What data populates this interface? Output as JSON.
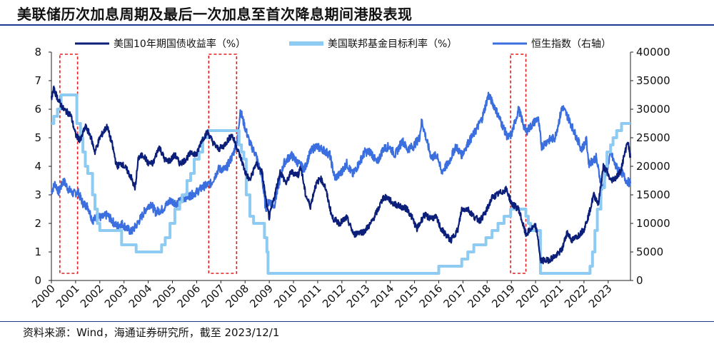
{
  "title": "美联储历次加息周期及最后一次加息至首次降息期间港股表现",
  "source": "资料来源：Wind，海通证券研究所，截至 2023/12/1",
  "chart_data": {
    "type": "line",
    "title": "美联储历次加息周期及最后一次加息至首次降息期间港股表现",
    "x_ticks": [
      "2000",
      "2001",
      "2002",
      "2003",
      "2004",
      "2005",
      "2006",
      "2007",
      "2008",
      "2009",
      "2010",
      "2011",
      "2012",
      "2013",
      "2014",
      "2015",
      "2016",
      "2017",
      "2018",
      "2019",
      "2020",
      "2021",
      "2022",
      "2023"
    ],
    "xlim": [
      2000.0,
      2023.92
    ],
    "y_left": {
      "ylim": [
        0,
        8
      ],
      "ticks": [
        "0",
        "1",
        "2",
        "3",
        "4",
        "5",
        "6",
        "7",
        "8"
      ]
    },
    "y_right": {
      "ylim": [
        0,
        40000
      ],
      "ticks": [
        "0",
        "5000",
        "10000",
        "15000",
        "20000",
        "25000",
        "30000",
        "35000",
        "40000"
      ]
    },
    "legend": {
      "placement": "top",
      "entries": [
        "美国10年期国债收益率（%）",
        "美国联邦基金目标利率（%）",
        "恒生指数（右轴）"
      ]
    },
    "highlight_periods": [
      [
        2000.35,
        2001.08
      ],
      [
        2006.5,
        2007.65
      ],
      [
        2018.97,
        2019.6
      ]
    ],
    "series": [
      {
        "name": "美国10年期国债收益率（%）",
        "axis": "left",
        "color": "#0b1f7a",
        "points": [
          [
            2000.0,
            6.4
          ],
          [
            2000.1,
            6.7
          ],
          [
            2000.3,
            6.3
          ],
          [
            2000.5,
            6.0
          ],
          [
            2000.8,
            5.8
          ],
          [
            2001.0,
            5.1
          ],
          [
            2001.2,
            4.9
          ],
          [
            2001.4,
            5.4
          ],
          [
            2001.6,
            5.1
          ],
          [
            2001.8,
            4.5
          ],
          [
            2002.0,
            5.0
          ],
          [
            2002.3,
            5.4
          ],
          [
            2002.5,
            4.8
          ],
          [
            2002.7,
            4.0
          ],
          [
            2002.9,
            4.1
          ],
          [
            2003.1,
            3.9
          ],
          [
            2003.3,
            3.6
          ],
          [
            2003.45,
            3.2
          ],
          [
            2003.6,
            4.3
          ],
          [
            2003.8,
            4.4
          ],
          [
            2004.0,
            4.1
          ],
          [
            2004.2,
            4.1
          ],
          [
            2004.45,
            4.7
          ],
          [
            2004.7,
            4.2
          ],
          [
            2004.9,
            4.2
          ],
          [
            2005.1,
            4.4
          ],
          [
            2005.3,
            4.1
          ],
          [
            2005.5,
            4.2
          ],
          [
            2005.8,
            4.5
          ],
          [
            2006.0,
            4.4
          ],
          [
            2006.2,
            4.9
          ],
          [
            2006.45,
            5.2
          ],
          [
            2006.7,
            4.8
          ],
          [
            2006.9,
            4.6
          ],
          [
            2007.1,
            4.7
          ],
          [
            2007.45,
            5.1
          ],
          [
            2007.6,
            4.8
          ],
          [
            2007.9,
            4.1
          ],
          [
            2008.0,
            3.8
          ],
          [
            2008.2,
            3.5
          ],
          [
            2008.45,
            4.1
          ],
          [
            2008.7,
            3.8
          ],
          [
            2008.9,
            2.6
          ],
          [
            2009.0,
            2.2
          ],
          [
            2009.2,
            2.9
          ],
          [
            2009.45,
            3.8
          ],
          [
            2009.7,
            3.4
          ],
          [
            2009.9,
            3.8
          ],
          [
            2010.2,
            3.7
          ],
          [
            2010.3,
            4.0
          ],
          [
            2010.5,
            3.0
          ],
          [
            2010.7,
            2.6
          ],
          [
            2010.9,
            3.3
          ],
          [
            2011.1,
            3.6
          ],
          [
            2011.3,
            3.3
          ],
          [
            2011.6,
            2.2
          ],
          [
            2011.9,
            2.0
          ],
          [
            2012.2,
            2.2
          ],
          [
            2012.5,
            1.6
          ],
          [
            2012.7,
            1.7
          ],
          [
            2012.9,
            1.7
          ],
          [
            2013.2,
            2.0
          ],
          [
            2013.5,
            2.5
          ],
          [
            2013.7,
            2.9
          ],
          [
            2013.9,
            2.9
          ],
          [
            2014.1,
            2.7
          ],
          [
            2014.4,
            2.6
          ],
          [
            2014.7,
            2.5
          ],
          [
            2014.9,
            2.2
          ],
          [
            2015.1,
            1.8
          ],
          [
            2015.4,
            2.3
          ],
          [
            2015.6,
            2.2
          ],
          [
            2015.9,
            2.2
          ],
          [
            2016.1,
            1.8
          ],
          [
            2016.5,
            1.4
          ],
          [
            2016.8,
            1.8
          ],
          [
            2016.95,
            2.5
          ],
          [
            2017.2,
            2.5
          ],
          [
            2017.5,
            2.2
          ],
          [
            2017.7,
            2.1
          ],
          [
            2017.95,
            2.4
          ],
          [
            2018.2,
            2.9
          ],
          [
            2018.4,
            3.0
          ],
          [
            2018.8,
            3.2
          ],
          [
            2019.0,
            2.7
          ],
          [
            2019.3,
            2.5
          ],
          [
            2019.6,
            1.6
          ],
          [
            2019.8,
            1.8
          ],
          [
            2020.0,
            1.9
          ],
          [
            2020.1,
            1.5
          ],
          [
            2020.2,
            0.7
          ],
          [
            2020.5,
            0.7
          ],
          [
            2020.9,
            0.9
          ],
          [
            2021.1,
            1.1
          ],
          [
            2021.3,
            1.7
          ],
          [
            2021.5,
            1.4
          ],
          [
            2021.8,
            1.6
          ],
          [
            2022.0,
            1.8
          ],
          [
            2022.2,
            2.3
          ],
          [
            2022.4,
            3.0
          ],
          [
            2022.6,
            2.7
          ],
          [
            2022.8,
            4.0
          ],
          [
            2022.95,
            3.8
          ],
          [
            2023.1,
            3.5
          ],
          [
            2023.3,
            3.6
          ],
          [
            2023.5,
            3.8
          ],
          [
            2023.7,
            4.5
          ],
          [
            2023.8,
            4.9
          ],
          [
            2023.92,
            4.3
          ]
        ]
      },
      {
        "name": "美国联邦基金目标利率（%）",
        "axis": "left",
        "color": "#8ecbf2",
        "points": [
          [
            2000.0,
            5.5
          ],
          [
            2000.1,
            5.75
          ],
          [
            2000.25,
            6.0
          ],
          [
            2000.4,
            6.5
          ],
          [
            2001.0,
            6.5
          ],
          [
            2001.05,
            5.5
          ],
          [
            2001.2,
            5.0
          ],
          [
            2001.3,
            4.5
          ],
          [
            2001.4,
            4.0
          ],
          [
            2001.5,
            3.75
          ],
          [
            2001.7,
            3.0
          ],
          [
            2001.8,
            2.5
          ],
          [
            2001.9,
            2.0
          ],
          [
            2002.0,
            1.75
          ],
          [
            2002.85,
            1.75
          ],
          [
            2002.9,
            1.25
          ],
          [
            2003.45,
            1.25
          ],
          [
            2003.5,
            1.0
          ],
          [
            2004.5,
            1.0
          ],
          [
            2004.55,
            1.25
          ],
          [
            2004.7,
            1.5
          ],
          [
            2004.9,
            2.0
          ],
          [
            2005.1,
            2.5
          ],
          [
            2005.3,
            2.75
          ],
          [
            2005.4,
            3.0
          ],
          [
            2005.6,
            3.5
          ],
          [
            2005.75,
            3.75
          ],
          [
            2005.9,
            4.25
          ],
          [
            2006.1,
            4.5
          ],
          [
            2006.25,
            5.0
          ],
          [
            2006.45,
            5.25
          ],
          [
            2007.7,
            5.25
          ],
          [
            2007.75,
            4.75
          ],
          [
            2007.85,
            4.5
          ],
          [
            2007.95,
            4.25
          ],
          [
            2008.05,
            3.0
          ],
          [
            2008.2,
            2.25
          ],
          [
            2008.35,
            2.0
          ],
          [
            2008.8,
            1.5
          ],
          [
            2008.9,
            1.0
          ],
          [
            2008.95,
            0.25
          ],
          [
            2015.95,
            0.25
          ],
          [
            2016.0,
            0.5
          ],
          [
            2016.95,
            0.75
          ],
          [
            2017.2,
            1.0
          ],
          [
            2017.45,
            1.25
          ],
          [
            2017.95,
            1.5
          ],
          [
            2018.2,
            1.75
          ],
          [
            2018.45,
            2.0
          ],
          [
            2018.7,
            2.25
          ],
          [
            2018.97,
            2.5
          ],
          [
            2019.55,
            2.5
          ],
          [
            2019.6,
            2.25
          ],
          [
            2019.7,
            2.0
          ],
          [
            2019.8,
            1.75
          ],
          [
            2020.17,
            1.75
          ],
          [
            2020.2,
            0.25
          ],
          [
            2022.2,
            0.25
          ],
          [
            2022.25,
            0.5
          ],
          [
            2022.35,
            1.0
          ],
          [
            2022.45,
            1.75
          ],
          [
            2022.55,
            2.5
          ],
          [
            2022.7,
            3.25
          ],
          [
            2022.85,
            4.0
          ],
          [
            2022.95,
            4.5
          ],
          [
            2023.1,
            4.75
          ],
          [
            2023.2,
            5.0
          ],
          [
            2023.35,
            5.25
          ],
          [
            2023.55,
            5.5
          ],
          [
            2023.92,
            5.5
          ]
        ]
      },
      {
        "name": "恒生指数（右轴）",
        "axis": "right",
        "color": "#3b6fe0",
        "points": [
          [
            2000.0,
            15500
          ],
          [
            2000.15,
            17000
          ],
          [
            2000.3,
            15500
          ],
          [
            2000.5,
            17500
          ],
          [
            2000.7,
            16000
          ],
          [
            2000.9,
            15200
          ],
          [
            2001.1,
            15500
          ],
          [
            2001.3,
            13500
          ],
          [
            2001.5,
            13000
          ],
          [
            2001.7,
            10500
          ],
          [
            2001.9,
            11200
          ],
          [
            2002.1,
            11000
          ],
          [
            2002.3,
            11500
          ],
          [
            2002.5,
            10500
          ],
          [
            2002.7,
            9500
          ],
          [
            2002.9,
            10000
          ],
          [
            2003.1,
            9200
          ],
          [
            2003.3,
            8500
          ],
          [
            2003.5,
            9600
          ],
          [
            2003.7,
            11000
          ],
          [
            2003.9,
            12500
          ],
          [
            2004.1,
            13500
          ],
          [
            2004.3,
            12000
          ],
          [
            2004.6,
            12500
          ],
          [
            2004.9,
            14000
          ],
          [
            2005.2,
            13500
          ],
          [
            2005.5,
            14500
          ],
          [
            2005.8,
            15000
          ],
          [
            2006.0,
            15500
          ],
          [
            2006.3,
            16500
          ],
          [
            2006.6,
            17000
          ],
          [
            2006.9,
            19500
          ],
          [
            2007.2,
            19500
          ],
          [
            2007.5,
            22000
          ],
          [
            2007.7,
            25000
          ],
          [
            2007.8,
            30000
          ],
          [
            2007.95,
            27500
          ],
          [
            2008.2,
            24000
          ],
          [
            2008.45,
            22000
          ],
          [
            2008.7,
            18000
          ],
          [
            2008.85,
            12500
          ],
          [
            2009.0,
            14000
          ],
          [
            2009.2,
            13000
          ],
          [
            2009.4,
            17000
          ],
          [
            2009.6,
            20500
          ],
          [
            2009.9,
            22000
          ],
          [
            2010.2,
            20500
          ],
          [
            2010.45,
            19500
          ],
          [
            2010.7,
            22500
          ],
          [
            2010.9,
            23500
          ],
          [
            2011.2,
            23000
          ],
          [
            2011.5,
            22000
          ],
          [
            2011.7,
            18000
          ],
          [
            2011.9,
            18500
          ],
          [
            2012.2,
            20500
          ],
          [
            2012.45,
            18500
          ],
          [
            2012.7,
            20500
          ],
          [
            2012.95,
            22500
          ],
          [
            2013.2,
            22500
          ],
          [
            2013.45,
            20500
          ],
          [
            2013.7,
            23000
          ],
          [
            2013.95,
            23500
          ],
          [
            2014.2,
            22000
          ],
          [
            2014.5,
            24500
          ],
          [
            2014.7,
            23000
          ],
          [
            2014.95,
            23500
          ],
          [
            2015.2,
            25000
          ],
          [
            2015.3,
            28000
          ],
          [
            2015.5,
            24500
          ],
          [
            2015.7,
            21500
          ],
          [
            2015.95,
            22000
          ],
          [
            2016.1,
            19000
          ],
          [
            2016.4,
            20500
          ],
          [
            2016.7,
            23500
          ],
          [
            2016.95,
            22000
          ],
          [
            2017.2,
            24000
          ],
          [
            2017.5,
            26000
          ],
          [
            2017.8,
            28500
          ],
          [
            2018.05,
            32500
          ],
          [
            2018.3,
            30500
          ],
          [
            2018.6,
            27500
          ],
          [
            2018.85,
            25000
          ],
          [
            2019.0,
            25500
          ],
          [
            2019.3,
            30000
          ],
          [
            2019.6,
            26000
          ],
          [
            2019.9,
            27500
          ],
          [
            2020.1,
            28500
          ],
          [
            2020.25,
            23500
          ],
          [
            2020.5,
            24500
          ],
          [
            2020.8,
            25000
          ],
          [
            2021.0,
            28500
          ],
          [
            2021.1,
            30500
          ],
          [
            2021.35,
            28500
          ],
          [
            2021.6,
            26000
          ],
          [
            2021.9,
            23000
          ],
          [
            2022.1,
            24500
          ],
          [
            2022.2,
            20500
          ],
          [
            2022.5,
            21500
          ],
          [
            2022.75,
            16000
          ],
          [
            2022.95,
            19500
          ],
          [
            2023.1,
            22500
          ],
          [
            2023.3,
            20000
          ],
          [
            2023.55,
            19000
          ],
          [
            2023.75,
            17500
          ],
          [
            2023.92,
            17000
          ]
        ]
      }
    ]
  }
}
